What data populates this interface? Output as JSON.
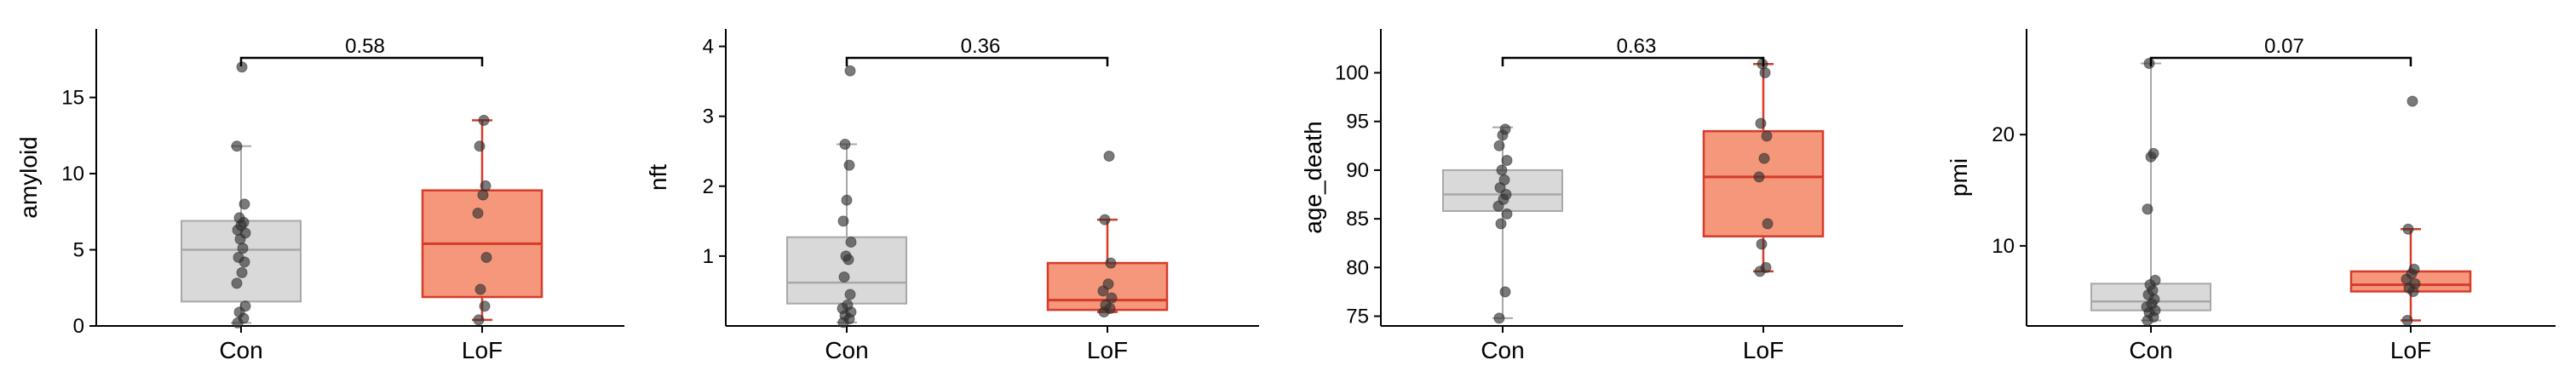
{
  "colors": {
    "con_fill": "#d9d9d9",
    "con_line": "#a8a8a8",
    "lof_fill": "#f4977b",
    "lof_line": "#d73b2a",
    "point": "#333333"
  },
  "chart_data": [
    {
      "type": "box",
      "categories": [
        "Con",
        "LoF"
      ],
      "ylabel": "amyloid",
      "ylim": [
        0,
        19.5
      ],
      "yticks": [
        0,
        5,
        10,
        15
      ],
      "pvalue": "0.58",
      "groups": [
        {
          "name": "Con",
          "whisker_low": 0.2,
          "q1": 1.6,
          "median": 5.0,
          "q3": 6.9,
          "whisker_high": 11.8,
          "points": [
            0.2,
            0.5,
            0.9,
            1.3,
            2.8,
            3.5,
            4.2,
            4.5,
            5.1,
            5.7,
            6.1,
            6.3,
            6.6,
            6.8,
            7.1,
            8.0,
            11.8,
            17.0
          ]
        },
        {
          "name": "LoF",
          "whisker_low": 0.4,
          "q1": 1.9,
          "median": 5.4,
          "q3": 8.9,
          "whisker_high": 13.5,
          "points": [
            0.4,
            1.3,
            2.4,
            4.5,
            7.4,
            8.6,
            9.2,
            11.8,
            13.5
          ]
        }
      ]
    },
    {
      "type": "box",
      "categories": [
        "Con",
        "LoF"
      ],
      "ylabel": "nft",
      "ylim": [
        0,
        4.25
      ],
      "yticks": [
        1,
        2,
        3,
        4
      ],
      "pvalue": "0.36",
      "groups": [
        {
          "name": "Con",
          "whisker_low": 0.05,
          "q1": 0.32,
          "median": 0.62,
          "q3": 1.27,
          "whisker_high": 2.6,
          "points": [
            0.05,
            0.1,
            0.15,
            0.2,
            0.25,
            0.3,
            0.45,
            0.7,
            0.95,
            1.0,
            1.2,
            1.5,
            1.8,
            2.3,
            2.6,
            3.65
          ]
        },
        {
          "name": "LoF",
          "whisker_low": 0.2,
          "q1": 0.23,
          "median": 0.37,
          "q3": 0.9,
          "whisker_high": 1.52,
          "points": [
            0.2,
            0.25,
            0.3,
            0.4,
            0.5,
            0.6,
            0.9,
            1.52,
            2.43
          ]
        }
      ]
    },
    {
      "type": "box",
      "categories": [
        "Con",
        "LoF"
      ],
      "ylabel": "age_death",
      "ylim": [
        74,
        104.5
      ],
      "yticks": [
        75,
        80,
        85,
        90,
        95,
        100
      ],
      "pvalue": "0.63",
      "groups": [
        {
          "name": "Con",
          "whisker_low": 74.8,
          "q1": 85.8,
          "median": 87.5,
          "q3": 90.0,
          "whisker_high": 94.4,
          "points": [
            74.8,
            77.5,
            84.5,
            85.5,
            86.3,
            87.0,
            87.5,
            88.2,
            89.0,
            90.0,
            91.0,
            92.5,
            93.6,
            94.2
          ]
        },
        {
          "name": "LoF",
          "whisker_low": 79.6,
          "q1": 83.2,
          "median": 89.3,
          "q3": 94.0,
          "whisker_high": 100.9,
          "points": [
            79.6,
            80.0,
            82.4,
            84.5,
            89.3,
            91.2,
            93.5,
            94.8,
            100.0,
            100.9
          ]
        }
      ]
    },
    {
      "type": "box",
      "categories": [
        "Con",
        "LoF"
      ],
      "ylabel": "pmi",
      "ylim": [
        2.8,
        29.5
      ],
      "yticks": [
        10,
        20
      ],
      "pvalue": "0.07",
      "groups": [
        {
          "name": "Con",
          "whisker_low": 3.3,
          "q1": 4.2,
          "median": 5.0,
          "q3": 6.6,
          "whisker_high": 26.4,
          "points": [
            3.3,
            3.6,
            4.0,
            4.2,
            4.5,
            4.8,
            5.2,
            5.6,
            6.0,
            6.5,
            6.9,
            13.3,
            18.0,
            18.3,
            26.4
          ]
        },
        {
          "name": "LoF",
          "whisker_low": 3.3,
          "q1": 5.9,
          "median": 6.5,
          "q3": 7.7,
          "whisker_high": 11.5,
          "points": [
            3.3,
            5.9,
            6.2,
            6.6,
            7.0,
            7.5,
            7.9,
            11.5,
            23.0
          ]
        }
      ]
    }
  ]
}
